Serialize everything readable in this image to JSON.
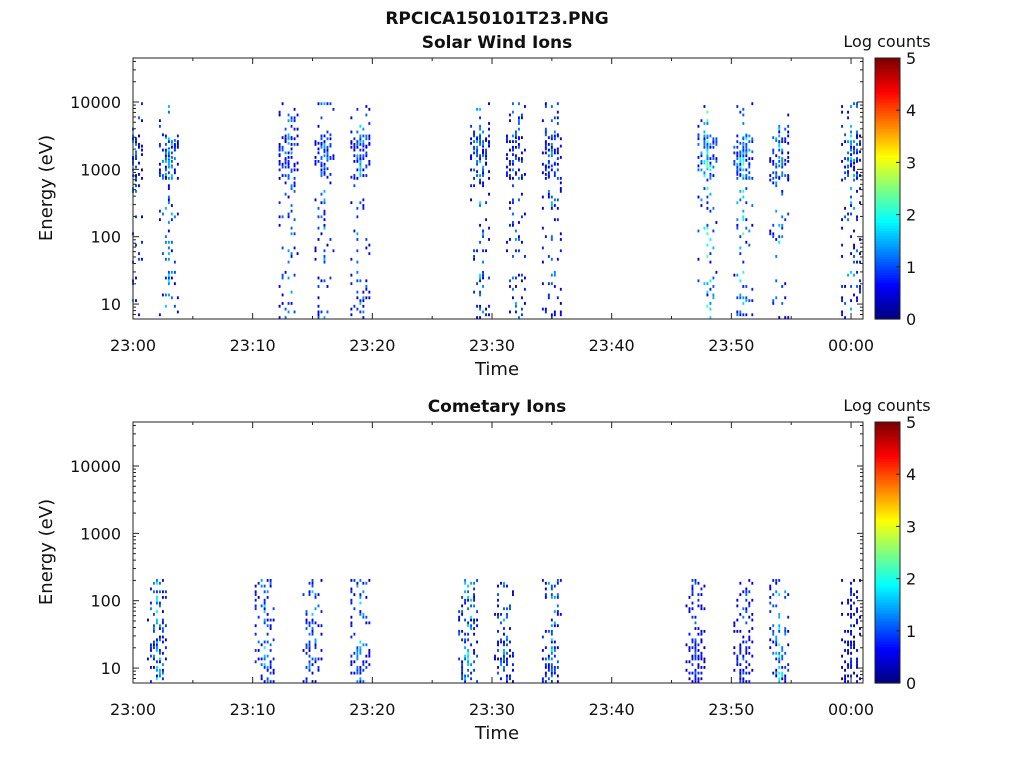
{
  "figure_title": "RPCICA150101T23.PNG",
  "chart_data": [
    {
      "type": "heatmap",
      "title": "Solar Wind Ions",
      "xlabel": "Time",
      "ylabel": "Energy (eV)",
      "y_scale": "log",
      "y_range": [
        6,
        45000
      ],
      "x_range": [
        "23:00",
        "00:01"
      ],
      "x_ticks": [
        "23:00",
        "23:10",
        "23:20",
        "23:30",
        "23:40",
        "23:50",
        "00:00"
      ],
      "y_ticks": [
        "10",
        "100",
        "1000",
        "10000"
      ],
      "colorbar": {
        "label": "Log counts",
        "range": [
          0,
          5
        ],
        "ticks": [
          "0",
          "1",
          "2",
          "3",
          "4",
          "5"
        ],
        "colormap": "jet"
      },
      "bursts": [
        {
          "time": "23:00",
          "level": 1.6
        },
        {
          "time": "23:03",
          "level": 2.0
        },
        {
          "time": "23:13",
          "level": 1.7
        },
        {
          "time": "23:16",
          "level": 1.6
        },
        {
          "time": "23:19",
          "level": 1.8
        },
        {
          "time": "23:29",
          "level": 1.8
        },
        {
          "time": "23:32",
          "level": 1.6
        },
        {
          "time": "23:35",
          "level": 1.6
        },
        {
          "time": "23:48",
          "level": 2.4
        },
        {
          "time": "23:51",
          "level": 2.4
        },
        {
          "time": "23:54",
          "level": 1.8
        },
        {
          "time": "00:00",
          "level": 1.8
        }
      ],
      "grid": false,
      "legend": "none"
    },
    {
      "type": "heatmap",
      "title": "Cometary Ions",
      "xlabel": "Time",
      "ylabel": "Energy (eV)",
      "y_scale": "log",
      "y_range": [
        6,
        45000
      ],
      "x_range": [
        "23:00",
        "00:01"
      ],
      "x_ticks": [
        "23:00",
        "23:10",
        "23:20",
        "23:30",
        "23:40",
        "23:50",
        "00:00"
      ],
      "y_ticks": [
        "10",
        "100",
        "1000",
        "10000"
      ],
      "colorbar": {
        "label": "Log counts",
        "range": [
          0,
          5
        ],
        "ticks": [
          "0",
          "1",
          "2",
          "3",
          "4",
          "5"
        ],
        "colormap": "jet"
      },
      "bursts": [
        {
          "time": "23:02",
          "level": 2.0
        },
        {
          "time": "23:11",
          "level": 2.0
        },
        {
          "time": "23:15",
          "level": 1.8
        },
        {
          "time": "23:19",
          "level": 1.8
        },
        {
          "time": "23:28",
          "level": 2.2
        },
        {
          "time": "23:31",
          "level": 1.6
        },
        {
          "time": "23:35",
          "level": 1.8
        },
        {
          "time": "23:47",
          "level": 1.2
        },
        {
          "time": "23:51",
          "level": 1.4
        },
        {
          "time": "23:54",
          "level": 2.2
        },
        {
          "time": "00:00",
          "level": 1.0
        }
      ],
      "grid": false,
      "legend": "none"
    }
  ]
}
